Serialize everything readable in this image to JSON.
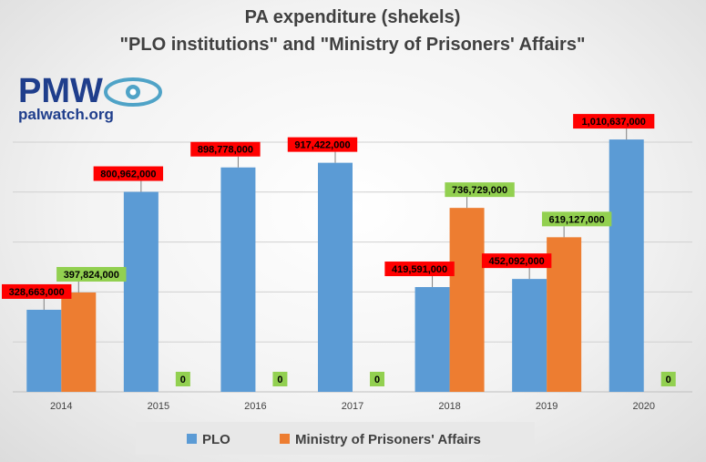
{
  "logo": {
    "brand": "PMW",
    "url": "palwatch.org"
  },
  "chart_data": {
    "type": "bar",
    "title": "PA expenditure (shekels)",
    "subtitle": "\"PLO institutions\" and \"Ministry of Prisoners' Affairs\"",
    "categories": [
      "2014",
      "2015",
      "2016",
      "2017",
      "2018",
      "2019",
      "2020"
    ],
    "series": [
      {
        "name": "PLO",
        "color": "#5b9bd5",
        "label_color": "#ff0000",
        "values": [
          328663000,
          800962000,
          898778000,
          917422000,
          419591000,
          452092000,
          1010637000
        ],
        "labels": [
          "328,663,000",
          "800,962,000",
          "898,778,000",
          "917,422,000",
          "419,591,000",
          "452,092,000",
          "1,010,637,000"
        ]
      },
      {
        "name": "Ministry of Prisoners' Affairs",
        "color": "#ed7d31",
        "label_color": "#92d050",
        "values": [
          397824000,
          0,
          0,
          0,
          736729000,
          619127000,
          0
        ],
        "labels": [
          "397,824,000",
          "0",
          "0",
          "0",
          "736,729,000",
          "619,127,000",
          "0"
        ]
      }
    ],
    "ylim": [
      0,
      1000000000
    ],
    "grid": true,
    "legend_position": "bottom"
  }
}
